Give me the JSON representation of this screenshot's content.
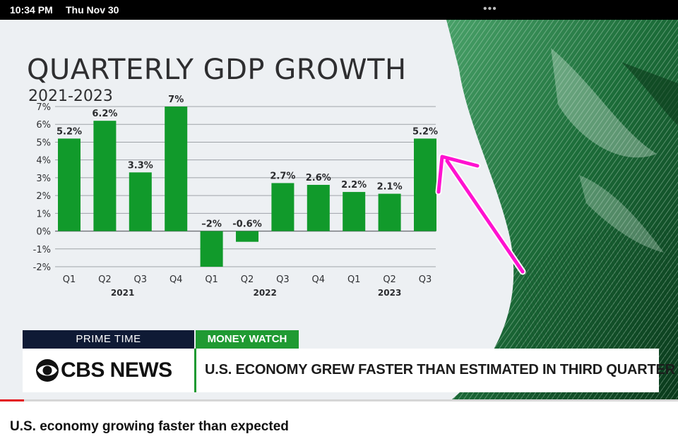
{
  "status_bar": {
    "time": "10:34 PM",
    "date": "Thu Nov 30",
    "menu": "•••"
  },
  "video": {
    "chart_title": "QUARTERLY GDP GROWTH",
    "chart_subtitle": "2021-2023",
    "lower_third": {
      "program": "PRIME TIME",
      "segment": "MONEY WATCH",
      "logo_text": "CBS NEWS",
      "headline": "U.S. ECONOMY GREW FASTER THAN ESTIMATED IN THIRD QUARTER"
    },
    "progress": 0.035,
    "colors": {
      "bar": "#119a2b",
      "arrow": "#ff12d0",
      "brand_green": "#1f9a32",
      "navy": "#0f1a35",
      "progress": "#e3121a"
    }
  },
  "page": {
    "video_title": "U.S. economy growing faster than expected"
  },
  "chart_data": {
    "type": "bar",
    "title": "QUARTERLY GDP GROWTH",
    "subtitle": "2021-2023",
    "categories": [
      "Q1",
      "Q2",
      "Q3",
      "Q4",
      "Q1",
      "Q2",
      "Q3",
      "Q4",
      "Q1",
      "Q2",
      "Q3"
    ],
    "years": [
      {
        "label": "2021",
        "start": 0,
        "end": 3
      },
      {
        "label": "2022",
        "start": 4,
        "end": 7
      },
      {
        "label": "2023",
        "start": 8,
        "end": 10
      }
    ],
    "values": [
      5.2,
      6.2,
      3.3,
      7,
      -2,
      -0.6,
      2.7,
      2.6,
      2.2,
      2.1,
      5.2
    ],
    "value_labels": [
      "5.2%",
      "6.2%",
      "3.3%",
      "7%",
      "–2%",
      "-0.6%",
      "2.7%",
      "2.6%",
      "2.2%",
      "2.1%",
      "5.2%"
    ],
    "y_ticks": [
      7,
      6,
      5,
      4,
      3,
      2,
      1,
      0,
      -1,
      -2
    ],
    "y_tick_labels": [
      "7%",
      "6%",
      "5%",
      "4%",
      "3%",
      "2%",
      "1%",
      "0%",
      "-1%",
      "-2%"
    ],
    "ylim": [
      -2,
      7
    ],
    "grid": true,
    "annotation": "magenta arrow pointing to the final bar (Q3 2023)"
  }
}
